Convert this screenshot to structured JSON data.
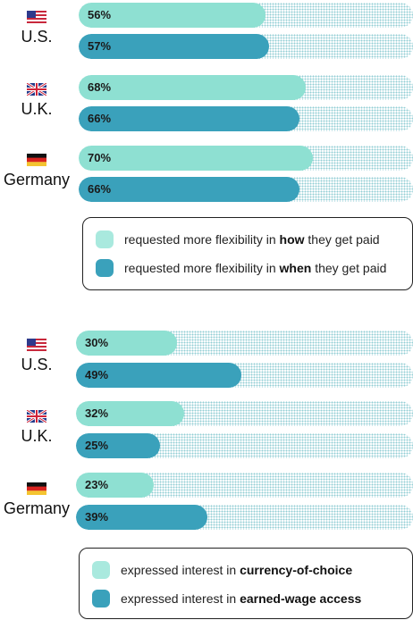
{
  "colors": {
    "series_light": "#8ee0d2",
    "series_dark": "#3aa1bb",
    "track_dots": "#6ebec6"
  },
  "chart_data": [
    {
      "type": "bar",
      "orientation": "horizontal",
      "value_suffix": "%",
      "ylim": [
        0,
        100
      ],
      "categories": [
        {
          "name": "U.S.",
          "flag": "us-flag-icon"
        },
        {
          "name": "U.K.",
          "flag": "uk-flag-icon"
        },
        {
          "name": "Germany",
          "flag": "germany-flag-icon"
        }
      ],
      "series": [
        {
          "values": [
            56,
            68,
            70
          ],
          "color": "#8ee0d2"
        },
        {
          "values": [
            57,
            66,
            66
          ],
          "color": "#3aa1bb"
        }
      ],
      "legend": [
        {
          "prefix": "requested more flexibility in ",
          "bold": "how",
          "suffix": " they get paid"
        },
        {
          "prefix": "requested more flexibility in ",
          "bold": "when",
          "suffix": " they get paid"
        }
      ],
      "legend_position": "bottom"
    },
    {
      "type": "bar",
      "orientation": "horizontal",
      "value_suffix": "%",
      "ylim": [
        0,
        100
      ],
      "categories": [
        {
          "name": "U.S.",
          "flag": "us-flag-icon"
        },
        {
          "name": "U.K.",
          "flag": "uk-flag-icon"
        },
        {
          "name": "Germany",
          "flag": "germany-flag-icon"
        }
      ],
      "series": [
        {
          "values": [
            30,
            32,
            23
          ],
          "color": "#8ee0d2"
        },
        {
          "values": [
            49,
            25,
            39
          ],
          "color": "#3aa1bb"
        }
      ],
      "legend": [
        {
          "prefix": "expressed interest in ",
          "bold": "currency-of-choice",
          "suffix": ""
        },
        {
          "prefix": "expressed interest in ",
          "bold": "earned-wage access",
          "suffix": ""
        }
      ],
      "legend_position": "bottom"
    }
  ]
}
